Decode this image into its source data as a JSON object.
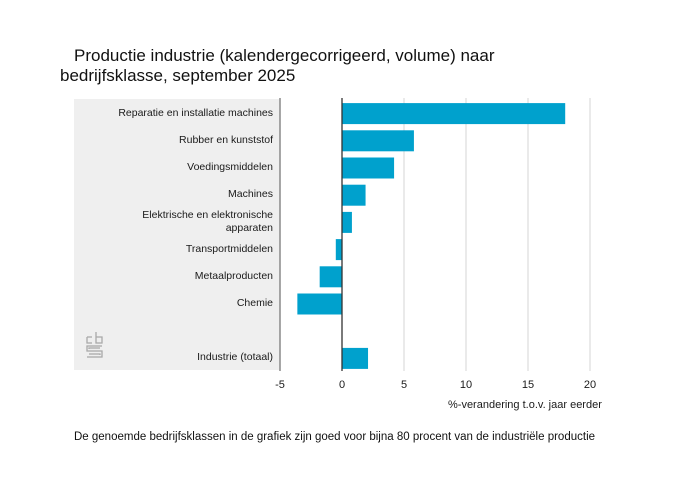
{
  "chart_data": {
    "type": "bar",
    "orientation": "horizontal",
    "title_line1": "Productie industrie (kalendergecorrigeerd, volume) naar",
    "title_line2": "bedrijfsklasse, september 2025",
    "categories": [
      "Reparatie en installatie machines",
      "Rubber en kunststof",
      "Voedingsmiddelen",
      "Machines",
      "Elektrische en elektronische apparaten",
      "Transportmiddelen",
      "Metaalproducten",
      "Chemie",
      "",
      "Industrie (totaal)"
    ],
    "category_lines": [
      [
        "Reparatie en installatie machines"
      ],
      [
        "Rubber en kunststof"
      ],
      [
        "Voedingsmiddelen"
      ],
      [
        "Machines"
      ],
      [
        "Elektrische en elektronische",
        "apparaten"
      ],
      [
        "Transportmiddelen"
      ],
      [
        "Metaalproducten"
      ],
      [
        "Chemie"
      ],
      [],
      [
        "Industrie (totaal)"
      ]
    ],
    "values": [
      18.0,
      5.8,
      4.2,
      1.9,
      0.8,
      -0.5,
      -1.8,
      -3.6,
      null,
      2.1
    ],
    "xlabel": "%-verandering t.o.v. jaar eerder",
    "ylabel": "",
    "xlim": [
      -5,
      20
    ],
    "xticks": [
      -5,
      0,
      5,
      10,
      15,
      20
    ],
    "xtick_labels": [
      "-5",
      "0",
      "5",
      "10",
      "15",
      "20"
    ],
    "grid": true,
    "legend": "none",
    "bar_color": "#00a1cd"
  },
  "footnote": "De genoemde bedrijfsklassen in de grafiek zijn goed voor bijna 80 procent van de industriële productie",
  "logo": {
    "text": "cbs",
    "icon": "cbs-logo-icon"
  }
}
